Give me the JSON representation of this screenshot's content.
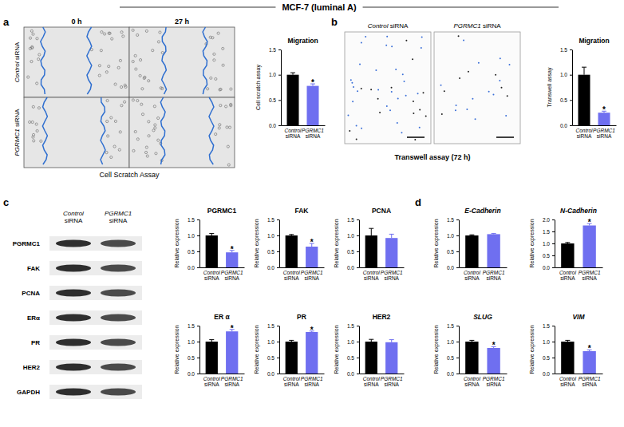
{
  "figure": {
    "title": "MCF-7 (luminal A)",
    "panel_a": {
      "letter": "a",
      "column_labels": [
        "0 h",
        "27 h"
      ],
      "row_labels": [
        "Control siRNA",
        "PGRMC1 siRNA"
      ],
      "caption": "Cell Scratch Assay"
    },
    "panel_b": {
      "letter": "b",
      "column_labels": [
        "Control siRNA",
        "PGRMC1 siRNA"
      ],
      "caption": "Transwell assay (72 h)"
    },
    "panel_c": {
      "letter": "c",
      "column_labels": [
        "Control siRNA",
        "PGRMC1 siRNA"
      ],
      "row_labels": [
        "PGRMC1",
        "FAK",
        "PCNA",
        "ERα",
        "PR",
        "HER2",
        "GAPDH"
      ]
    },
    "panel_d": {
      "letter": "d"
    }
  },
  "chart_data": [
    {
      "type": "bar",
      "title": "Migration",
      "ylabel": "Cell scratch assay",
      "categories": [
        "Control siRNA",
        "PGRMC1 siRNA"
      ],
      "values": [
        1.0,
        0.78
      ],
      "errors": [
        0.04,
        0.04
      ],
      "colors": [
        "#000000",
        "#6f6ff0"
      ],
      "ylim": [
        0,
        1.5
      ],
      "yticks": [
        {
          "value": 0,
          "label": "0.0"
        },
        0.5,
        {
          "value": 1,
          "label": "1.0"
        },
        1.5
      ],
      "annotations": [
        {
          "category": "PGRMC1 siRNA",
          "text": "*"
        }
      ]
    },
    {
      "type": "bar",
      "title": "Migration",
      "ylabel": "Transwell assay",
      "categories": [
        "Control siRNA",
        "PGRMC1 siRNA"
      ],
      "values": [
        1.0,
        0.25
      ],
      "errors": [
        0.15,
        0.03
      ],
      "colors": [
        "#000000",
        "#6f6ff0"
      ],
      "ylim": [
        0,
        1.5
      ],
      "yticks": [
        {
          "value": 0,
          "label": "0.0"
        },
        0.5,
        {
          "value": 1,
          "label": "1.0"
        },
        1.5
      ],
      "annotations": [
        {
          "category": "PGRMC1 siRNA",
          "text": "*"
        }
      ]
    },
    {
      "type": "bar",
      "title": "PGRMC1",
      "ylabel": "Relative expression",
      "categories": [
        "Control siRNA",
        "PGRMC1 siRNA"
      ],
      "values": [
        1.0,
        0.47
      ],
      "errors": [
        0.06,
        0.06
      ],
      "colors": [
        "#000000",
        "#6f6ff0"
      ],
      "ylim": [
        0,
        1.5
      ],
      "yticks": [
        {
          "value": 0,
          "label": "0.0"
        },
        0.5,
        {
          "value": 1,
          "label": "1.0"
        },
        1.5
      ],
      "annotations": [
        {
          "category": "PGRMC1 siRNA",
          "text": "*"
        }
      ]
    },
    {
      "type": "bar",
      "title": "FAK",
      "ylabel": "Relative expression",
      "categories": [
        "Control siRNA",
        "PGRMC1 siRNA"
      ],
      "values": [
        1.0,
        0.65
      ],
      "errors": [
        0.03,
        0.1
      ],
      "colors": [
        "#000000",
        "#6f6ff0"
      ],
      "ylim": [
        0,
        1.5
      ],
      "yticks": [
        {
          "value": 0,
          "label": "0.0"
        },
        0.5,
        {
          "value": 1,
          "label": "1.0"
        },
        1.5
      ],
      "annotations": [
        {
          "category": "PGRMC1 siRNA",
          "text": "*"
        }
      ]
    },
    {
      "type": "bar",
      "title": "PCNA",
      "ylabel": "Relative expression",
      "categories": [
        "Control siRNA",
        "PGRMC1 siRNA"
      ],
      "values": [
        1.0,
        0.92
      ],
      "errors": [
        0.22,
        0.12
      ],
      "colors": [
        "#000000",
        "#6f6ff0"
      ],
      "ylim": [
        0,
        1.5
      ],
      "yticks": [
        {
          "value": 0,
          "label": "0.0"
        },
        0.5,
        {
          "value": 1,
          "label": "1.0"
        },
        1.5
      ]
    },
    {
      "type": "bar",
      "title": "ER α",
      "ylabel": "Relative expression",
      "categories": [
        "Control siRNA",
        "PGRMC1 siRNA"
      ],
      "values": [
        1.0,
        1.32
      ],
      "errors": [
        0.06,
        0.06
      ],
      "colors": [
        "#000000",
        "#6f6ff0"
      ],
      "ylim": [
        0,
        1.5
      ],
      "yticks": [
        {
          "value": 0,
          "label": "0.0"
        },
        0.5,
        {
          "value": 1,
          "label": "1.0"
        },
        1.5
      ],
      "annotations": [
        {
          "category": "PGRMC1 siRNA",
          "text": "*"
        }
      ]
    },
    {
      "type": "bar",
      "title": "PR",
      "ylabel": "Relative expression",
      "categories": [
        "Control siRNA",
        "PGRMC1 siRNA"
      ],
      "values": [
        1.0,
        1.3
      ],
      "errors": [
        0.04,
        0.03
      ],
      "colors": [
        "#000000",
        "#6f6ff0"
      ],
      "ylim": [
        0,
        1.5
      ],
      "yticks": [
        {
          "value": 0,
          "label": "0.0"
        },
        0.5,
        {
          "value": 1,
          "label": "1.0"
        },
        1.5
      ],
      "annotations": [
        {
          "category": "PGRMC1 siRNA",
          "text": "*"
        }
      ]
    },
    {
      "type": "bar",
      "title": "HER2",
      "ylabel": "Relative expression",
      "categories": [
        "Control siRNA",
        "PGRMC1 siRNA"
      ],
      "values": [
        1.0,
        0.98
      ],
      "errors": [
        0.07,
        0.08
      ],
      "colors": [
        "#000000",
        "#6f6ff0"
      ],
      "ylim": [
        0,
        1.5
      ],
      "yticks": [
        {
          "value": 0,
          "label": "0.0"
        },
        0.5,
        {
          "value": 1,
          "label": "1.0"
        },
        1.5
      ]
    },
    {
      "type": "bar",
      "title": "E-Cadherin",
      "ylabel": "Relative expression",
      "categories": [
        "Control siRNA",
        "PGRMC1 siRNA"
      ],
      "values": [
        1.0,
        1.04
      ],
      "errors": [
        0.02,
        0.02
      ],
      "colors": [
        "#000000",
        "#6f6ff0"
      ],
      "ylim": [
        0,
        1.5
      ],
      "yticks": [
        {
          "value": 0,
          "label": "0.0"
        },
        0.5,
        {
          "value": 1,
          "label": "1.0"
        },
        1.5
      ]
    },
    {
      "type": "bar",
      "title": "N-Cadherin",
      "ylabel": "Relative expression",
      "categories": [
        "Control siRNA",
        "PGRMC1 siRNA"
      ],
      "values": [
        1.0,
        1.75
      ],
      "errors": [
        0.04,
        0.08
      ],
      "colors": [
        "#000000",
        "#6f6ff0"
      ],
      "ylim": [
        0,
        2
      ],
      "yticks": [
        {
          "value": 0,
          "label": "0.0"
        },
        0.5,
        {
          "value": 1,
          "label": "1.0"
        },
        1.5,
        {
          "value": 2,
          "label": "2.0"
        }
      ],
      "annotations": [
        {
          "category": "PGRMC1 siRNA",
          "text": "*"
        }
      ]
    },
    {
      "type": "bar",
      "title": "SLUG",
      "ylabel": "Relative expression",
      "categories": [
        "Control siRNA",
        "PGRMC1 siRNA"
      ],
      "values": [
        1.0,
        0.8
      ],
      "errors": [
        0.04,
        0.04
      ],
      "colors": [
        "#000000",
        "#6f6ff0"
      ],
      "ylim": [
        0,
        1.5
      ],
      "yticks": [
        {
          "value": 0,
          "label": "0.0"
        },
        0.5,
        {
          "value": 1,
          "label": "1.0"
        },
        1.5
      ],
      "annotations": [
        {
          "category": "PGRMC1 siRNA",
          "text": "*"
        }
      ]
    },
    {
      "type": "bar",
      "title": "VIM",
      "ylabel": "Relative expression",
      "categories": [
        "Control siRNA",
        "PGRMC1 siRNA"
      ],
      "values": [
        1.0,
        0.7
      ],
      "errors": [
        0.04,
        0.04
      ],
      "colors": [
        "#000000",
        "#6f6ff0"
      ],
      "ylim": [
        0,
        1.5
      ],
      "yticks": [
        {
          "value": 0,
          "label": "0.0"
        },
        0.5,
        {
          "value": 1,
          "label": "1.0"
        },
        1.5
      ],
      "annotations": [
        {
          "category": "PGRMC1 siRNA",
          "text": "*"
        }
      ]
    }
  ]
}
